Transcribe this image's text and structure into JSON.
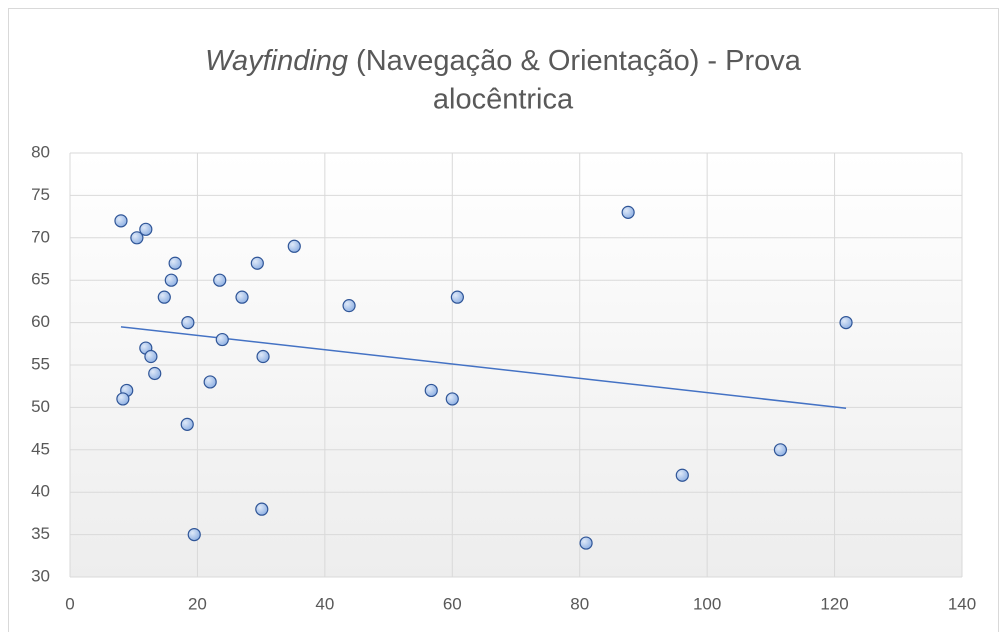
{
  "chart_data": {
    "type": "scatter",
    "title": {
      "italic": "Wayfinding",
      "line1": "(Navegação & Orientação) - Prova",
      "line2": "alocêntrica"
    },
    "series": [
      {
        "color": "#a9c4eb",
        "x": [
          8.0,
          11.9,
          10.5,
          16.5,
          15.9,
          14.8,
          23.5,
          29.4,
          35.2,
          27,
          43.8,
          60.8,
          87.6,
          18.5,
          23.9,
          11.9,
          12.7,
          30.3,
          13.3,
          22,
          8.9,
          8.3,
          56.7,
          60,
          18.4,
          19.5,
          30.1,
          81,
          96.1,
          111.5,
          121.8
        ],
        "values": [
          72,
          71,
          70,
          67,
          65,
          63,
          65,
          67,
          69,
          63,
          62,
          63,
          73,
          60,
          58,
          57,
          56,
          56,
          54,
          53,
          52,
          51,
          52,
          51,
          48,
          35,
          38,
          34,
          42,
          45,
          60
        ]
      }
    ],
    "trendline": {
      "color": "#4472c4",
      "x": [
        8,
        121.8
      ],
      "values": [
        59.5,
        49.9
      ]
    },
    "xlim": [
      0,
      140
    ],
    "xticks": [
      0,
      20,
      40,
      60,
      80,
      100,
      120,
      140
    ],
    "ylim": [
      30,
      80
    ],
    "yticks": [
      30,
      35,
      40,
      45,
      50,
      55,
      60,
      65,
      70,
      75,
      80
    ],
    "grid": true
  }
}
